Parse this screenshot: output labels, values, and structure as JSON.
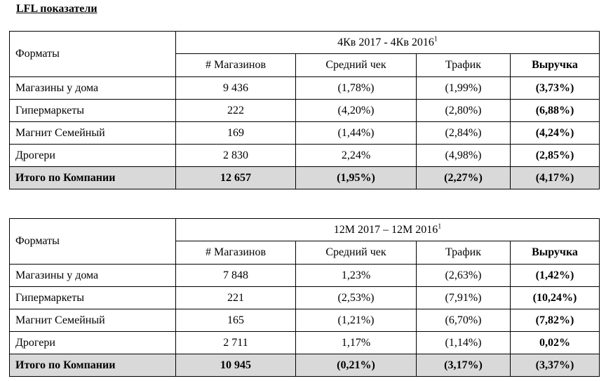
{
  "title": "LFL показатели",
  "tables": [
    {
      "format_header": "Форматы",
      "period": "4Кв 2017 - 4Кв 2016",
      "period_note": "1",
      "columns": [
        "# Магазинов",
        "Средний чек",
        "Трафик",
        "Выручка"
      ],
      "rows": [
        {
          "name": "Магазины у дома",
          "stores": "9 436",
          "check": "(1,78%)",
          "traffic": "(1,99%)",
          "revenue": "(3,73%)"
        },
        {
          "name": "Гипермаркеты",
          "stores": "222",
          "check": "(4,20%)",
          "traffic": "(2,80%)",
          "revenue": "(6,88%)"
        },
        {
          "name": "Магнит Семейный",
          "stores": "169",
          "check": "(1,44%)",
          "traffic": "(2,84%)",
          "revenue": "(4,24%)"
        },
        {
          "name": "Дрогери",
          "stores": "2 830",
          "check": "2,24%",
          "traffic": "(4,98%)",
          "revenue": "(2,85%)"
        },
        {
          "name": "Итого по Компании",
          "stores": "12 657",
          "check": "(1,95%)",
          "traffic": "(2,27%)",
          "revenue": "(4,17%)"
        }
      ]
    },
    {
      "format_header": "Форматы",
      "period": "12М 2017 – 12М 2016",
      "period_note": "1",
      "columns": [
        "# Магазинов",
        "Средний чек",
        "Трафик",
        "Выручка"
      ],
      "rows": [
        {
          "name": "Магазины у дома",
          "stores": "7 848",
          "check": "1,23%",
          "traffic": "(2,63%)",
          "revenue": "(1,42%)"
        },
        {
          "name": "Гипермаркеты",
          "stores": "221",
          "check": "(2,53%)",
          "traffic": "(7,91%)",
          "revenue": "(10,24%)"
        },
        {
          "name": "Магнит Семейный",
          "stores": "165",
          "check": "(1,21%)",
          "traffic": "(6,70%)",
          "revenue": "(7,82%)"
        },
        {
          "name": "Дрогери",
          "stores": "2 711",
          "check": "1,17%",
          "traffic": "(1,14%)",
          "revenue": "0,02%"
        },
        {
          "name": "Итого по Компании",
          "stores": "10 945",
          "check": "(0,21%)",
          "traffic": "(3,17%)",
          "revenue": "(3,37%)"
        }
      ]
    }
  ],
  "colors": {
    "total_row_bg": "#d9d9d9",
    "border": "#000000"
  }
}
